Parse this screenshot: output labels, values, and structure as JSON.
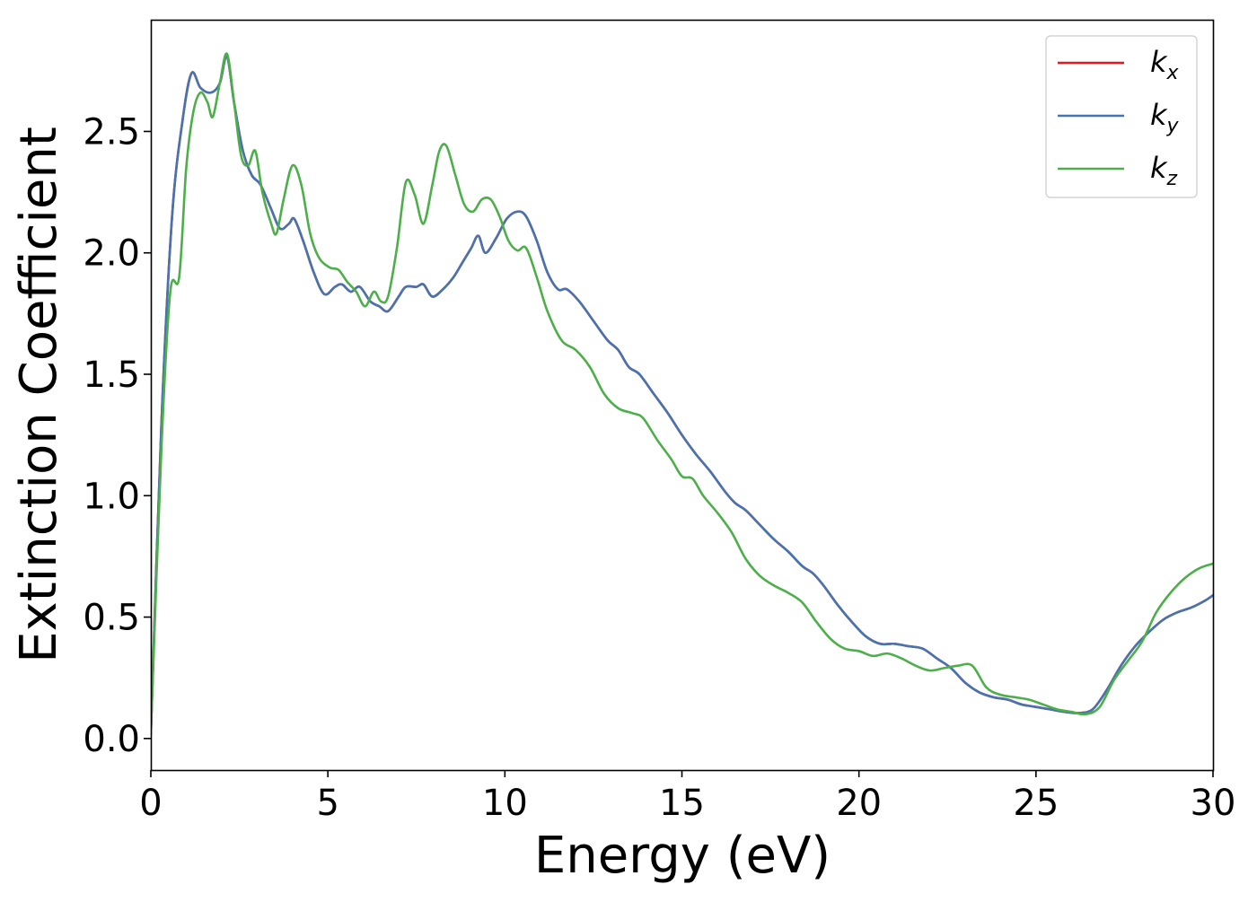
{
  "chart_data": {
    "type": "line",
    "title": "",
    "xlabel": "Energy (eV)",
    "ylabel": "Extinction Coefficient",
    "xlim": [
      0,
      30
    ],
    "ylim": [
      -0.13,
      2.96
    ],
    "x_ticks": [
      0,
      5,
      10,
      15,
      20,
      25,
      30
    ],
    "x_tick_labels": [
      "0",
      "5",
      "10",
      "15",
      "20",
      "25",
      "30"
    ],
    "y_ticks": [
      0.0,
      0.5,
      1.0,
      1.5,
      2.0,
      2.5
    ],
    "y_tick_labels": [
      "0.0",
      "0.5",
      "1.0",
      "1.5",
      "2.0",
      "2.5"
    ],
    "grid": false,
    "legend_position": "top-right",
    "series": [
      {
        "name": "k_x",
        "legend_symbol": "k",
        "legend_subscript": "x",
        "color": "#e41a1c",
        "x": [
          0,
          0.3,
          0.6,
          0.9,
          1.15,
          1.4,
          1.7,
          1.95,
          2.15,
          2.35,
          2.6,
          2.85,
          3.1,
          3.4,
          3.65,
          3.9,
          4.05,
          4.3,
          4.6,
          4.9,
          5.2,
          5.4,
          5.65,
          5.9,
          6.2,
          6.45,
          6.7,
          7.0,
          7.2,
          7.5,
          7.7,
          7.95,
          8.25,
          8.55,
          8.8,
          9.05,
          9.25,
          9.45,
          9.75,
          10.05,
          10.35,
          10.6,
          10.9,
          11.2,
          11.5,
          11.75,
          12.1,
          12.5,
          12.9,
          13.2,
          13.5,
          13.8,
          14.2,
          14.6,
          15.0,
          15.4,
          15.8,
          16.2,
          16.5,
          16.8,
          17.2,
          17.6,
          18.0,
          18.4,
          18.7,
          19.0,
          19.4,
          19.8,
          20.2,
          20.6,
          21.0,
          21.4,
          21.8,
          22.2,
          22.6,
          23.0,
          23.4,
          23.8,
          24.2,
          24.6,
          25.0,
          25.4,
          25.8,
          26.2,
          26.6,
          27.0,
          27.4,
          27.8,
          28.2,
          28.6,
          29.0,
          29.4,
          29.8,
          30.0
        ],
        "values": [
          0.02,
          1.3,
          2.15,
          2.55,
          2.74,
          2.68,
          2.66,
          2.7,
          2.81,
          2.62,
          2.42,
          2.32,
          2.28,
          2.18,
          2.1,
          2.12,
          2.14,
          2.05,
          1.92,
          1.83,
          1.86,
          1.87,
          1.84,
          1.86,
          1.8,
          1.78,
          1.76,
          1.82,
          1.86,
          1.86,
          1.87,
          1.82,
          1.85,
          1.9,
          1.96,
          2.02,
          2.07,
          2.0,
          2.06,
          2.14,
          2.17,
          2.15,
          2.05,
          1.92,
          1.85,
          1.85,
          1.8,
          1.72,
          1.64,
          1.6,
          1.53,
          1.5,
          1.42,
          1.34,
          1.25,
          1.17,
          1.1,
          1.02,
          0.97,
          0.94,
          0.88,
          0.82,
          0.77,
          0.71,
          0.68,
          0.63,
          0.55,
          0.48,
          0.42,
          0.39,
          0.39,
          0.38,
          0.37,
          0.33,
          0.29,
          0.23,
          0.19,
          0.17,
          0.16,
          0.14,
          0.13,
          0.12,
          0.11,
          0.105,
          0.12,
          0.2,
          0.3,
          0.38,
          0.44,
          0.49,
          0.52,
          0.54,
          0.57,
          0.59
        ]
      },
      {
        "name": "k_y",
        "legend_symbol": "k",
        "legend_subscript": "y",
        "color": "#4674b0",
        "x": [
          0,
          0.3,
          0.6,
          0.9,
          1.15,
          1.4,
          1.7,
          1.95,
          2.15,
          2.35,
          2.6,
          2.85,
          3.1,
          3.4,
          3.65,
          3.9,
          4.05,
          4.3,
          4.6,
          4.9,
          5.2,
          5.4,
          5.65,
          5.9,
          6.2,
          6.45,
          6.7,
          7.0,
          7.2,
          7.5,
          7.7,
          7.95,
          8.25,
          8.55,
          8.8,
          9.05,
          9.25,
          9.45,
          9.75,
          10.05,
          10.35,
          10.6,
          10.9,
          11.2,
          11.5,
          11.75,
          12.1,
          12.5,
          12.9,
          13.2,
          13.5,
          13.8,
          14.2,
          14.6,
          15.0,
          15.4,
          15.8,
          16.2,
          16.5,
          16.8,
          17.2,
          17.6,
          18.0,
          18.4,
          18.7,
          19.0,
          19.4,
          19.8,
          20.2,
          20.6,
          21.0,
          21.4,
          21.8,
          22.2,
          22.6,
          23.0,
          23.4,
          23.8,
          24.2,
          24.6,
          25.0,
          25.4,
          25.8,
          26.2,
          26.6,
          27.0,
          27.4,
          27.8,
          28.2,
          28.6,
          29.0,
          29.4,
          29.8,
          30.0
        ],
        "values": [
          0.02,
          1.3,
          2.15,
          2.55,
          2.74,
          2.68,
          2.66,
          2.7,
          2.81,
          2.62,
          2.42,
          2.32,
          2.28,
          2.18,
          2.1,
          2.12,
          2.14,
          2.05,
          1.92,
          1.83,
          1.86,
          1.87,
          1.84,
          1.86,
          1.8,
          1.78,
          1.76,
          1.82,
          1.86,
          1.86,
          1.87,
          1.82,
          1.85,
          1.9,
          1.96,
          2.02,
          2.07,
          2.0,
          2.06,
          2.14,
          2.17,
          2.15,
          2.05,
          1.92,
          1.85,
          1.85,
          1.8,
          1.72,
          1.64,
          1.6,
          1.53,
          1.5,
          1.42,
          1.34,
          1.25,
          1.17,
          1.1,
          1.02,
          0.97,
          0.94,
          0.88,
          0.82,
          0.77,
          0.71,
          0.68,
          0.63,
          0.55,
          0.48,
          0.42,
          0.39,
          0.39,
          0.38,
          0.37,
          0.33,
          0.29,
          0.23,
          0.19,
          0.17,
          0.16,
          0.14,
          0.13,
          0.12,
          0.11,
          0.105,
          0.12,
          0.2,
          0.3,
          0.38,
          0.44,
          0.49,
          0.52,
          0.54,
          0.57,
          0.59
        ]
      },
      {
        "name": "k_z",
        "legend_symbol": "k",
        "legend_subscript": "z",
        "color": "#4daf4a",
        "x": [
          0,
          0.3,
          0.55,
          0.8,
          1.0,
          1.2,
          1.4,
          1.6,
          1.75,
          1.95,
          2.15,
          2.35,
          2.55,
          2.75,
          2.95,
          3.15,
          3.4,
          3.55,
          3.75,
          4.0,
          4.25,
          4.5,
          4.75,
          5.05,
          5.3,
          5.55,
          5.8,
          6.05,
          6.3,
          6.5,
          6.7,
          6.95,
          7.2,
          7.45,
          7.7,
          7.95,
          8.15,
          8.35,
          8.6,
          8.85,
          9.1,
          9.35,
          9.6,
          9.85,
          10.1,
          10.35,
          10.6,
          10.9,
          11.2,
          11.6,
          12.0,
          12.4,
          12.8,
          13.2,
          13.6,
          13.9,
          14.3,
          14.7,
          15.0,
          15.3,
          15.6,
          16.0,
          16.4,
          16.8,
          17.2,
          17.6,
          18.0,
          18.4,
          18.8,
          19.2,
          19.6,
          20.0,
          20.4,
          20.8,
          21.2,
          21.6,
          22.0,
          22.4,
          22.8,
          23.2,
          23.6,
          24.0,
          24.4,
          24.8,
          25.2,
          25.6,
          26.0,
          26.4,
          26.8,
          27.2,
          27.6,
          28.0,
          28.4,
          28.8,
          29.2,
          29.6,
          30.0
        ],
        "values": [
          0.02,
          1.2,
          1.84,
          1.9,
          2.35,
          2.58,
          2.66,
          2.62,
          2.56,
          2.7,
          2.82,
          2.62,
          2.4,
          2.36,
          2.42,
          2.25,
          2.12,
          2.08,
          2.22,
          2.36,
          2.28,
          2.08,
          1.98,
          1.94,
          1.93,
          1.88,
          1.84,
          1.78,
          1.84,
          1.8,
          1.82,
          2.02,
          2.29,
          2.24,
          2.12,
          2.28,
          2.42,
          2.44,
          2.32,
          2.2,
          2.17,
          2.22,
          2.22,
          2.15,
          2.05,
          2.01,
          2.02,
          1.9,
          1.76,
          1.64,
          1.6,
          1.53,
          1.42,
          1.36,
          1.34,
          1.32,
          1.23,
          1.15,
          1.08,
          1.07,
          1.0,
          0.93,
          0.85,
          0.74,
          0.67,
          0.63,
          0.6,
          0.56,
          0.48,
          0.41,
          0.37,
          0.36,
          0.34,
          0.35,
          0.33,
          0.3,
          0.28,
          0.29,
          0.3,
          0.3,
          0.21,
          0.18,
          0.17,
          0.16,
          0.14,
          0.12,
          0.11,
          0.1,
          0.13,
          0.24,
          0.32,
          0.4,
          0.52,
          0.6,
          0.66,
          0.7,
          0.72
        ]
      }
    ]
  }
}
